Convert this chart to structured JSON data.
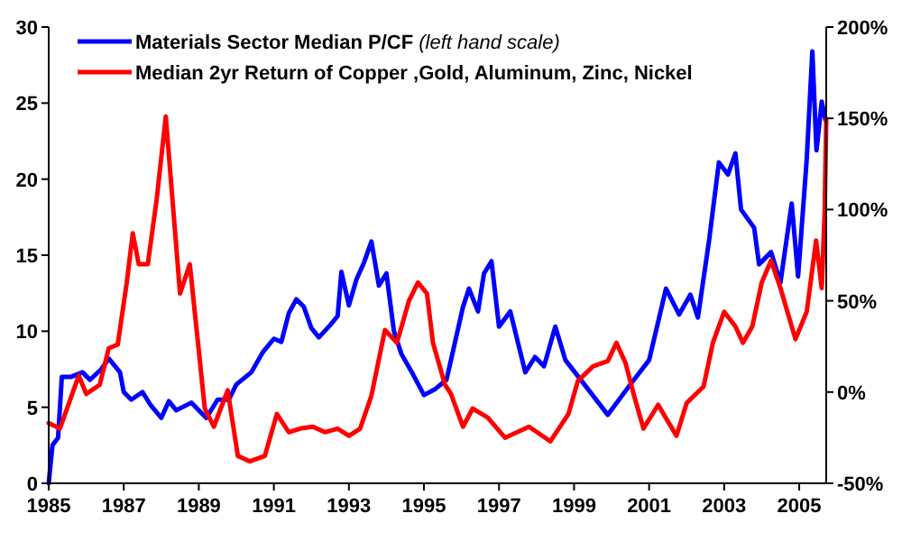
{
  "chart_data": {
    "type": "line",
    "xlim": [
      1985,
      2005.72
    ],
    "xticks": [
      1985,
      1987,
      1989,
      1991,
      1993,
      1995,
      1997,
      1999,
      2001,
      2003,
      2005
    ],
    "ylim": [
      0,
      30
    ],
    "yticks": [
      0,
      5,
      10,
      15,
      20,
      25,
      30
    ],
    "y2lim": [
      -50,
      200
    ],
    "y2ticks": [
      {
        "value": -50,
        "label": "-50%"
      },
      {
        "value": 0,
        "label": "0%"
      },
      {
        "value": 50,
        "label": "50%"
      },
      {
        "value": 100,
        "label": "100%"
      },
      {
        "value": 150,
        "label": "150%"
      },
      {
        "value": 200,
        "label": "200%"
      }
    ],
    "grid": false,
    "legend": "top left",
    "marker": "none",
    "line_style": "solid",
    "series": [
      {
        "name": "Materials Sector Median P/CF (left hand scale)",
        "color": "#0000ff",
        "x": [
          1985,
          1985.1,
          1985.25,
          1985.35,
          1985.6,
          1985.9,
          1986.1,
          1986.4,
          1986.6,
          1986.9,
          1987,
          1987.2,
          1987.5,
          1987.7,
          1988,
          1988.2,
          1988.4,
          1988.8,
          1989,
          1989.2,
          1989.5,
          1989.8,
          1990,
          1990.4,
          1990.7,
          1991,
          1991.2,
          1991.4,
          1991.6,
          1991.8,
          1992,
          1992.2,
          1992.5,
          1992.7,
          1992.8,
          1993,
          1993.2,
          1993.4,
          1993.6,
          1993.8,
          1994,
          1994.2,
          1994.4,
          1994.7,
          1995,
          1995.3,
          1995.6,
          1995.72,
          1996.04,
          1996.2,
          1996.44,
          1996.6,
          1996.8,
          1997,
          1997.3,
          1997.7,
          1997.96,
          1998.2,
          1998.5,
          1998.77,
          1999.4,
          1999.9,
          2000.5,
          2001,
          2001.45,
          2001.8,
          2002.1,
          2002.3,
          2002.6,
          2002.86,
          2003.1,
          2003.3,
          2003.45,
          2003.8,
          2003.93,
          2004.25,
          2004.5,
          2004.8,
          2004.97,
          2005.2,
          2005.35,
          2005.46,
          2005.6,
          2005.7
        ],
        "values": [
          0,
          2.5,
          3,
          7,
          7,
          7.3,
          6.8,
          7.5,
          8.2,
          7.3,
          6,
          5.5,
          6,
          5.2,
          4.3,
          5.4,
          4.8,
          5.3,
          4.8,
          4.3,
          5.5,
          5.5,
          6.5,
          7.3,
          8.6,
          9.5,
          9.3,
          11.2,
          12.1,
          11.6,
          10.2,
          9.6,
          10.4,
          11,
          13.9,
          11.7,
          13.4,
          14.5,
          15.9,
          13,
          13.8,
          10,
          8.5,
          7.2,
          5.8,
          6.2,
          6.8,
          8.1,
          11.6,
          12.8,
          11.3,
          13.8,
          14.6,
          10.3,
          11.3,
          7.3,
          8.3,
          7.7,
          10.3,
          8.1,
          6.1,
          4.5,
          6.5,
          8.1,
          12.8,
          11.1,
          12.4,
          10.9,
          16,
          21.1,
          20.3,
          21.7,
          18,
          16.8,
          14.4,
          15.2,
          13.2,
          18.4,
          13.6,
          21.3,
          28.4,
          21.9,
          25.1,
          23.9
        ]
      },
      {
        "name": "Median 2yr Return of Copper ,Gold, Aluminum, Zinc, Nickel",
        "color": "#ff0000",
        "axis": "y2",
        "x": [
          1985,
          1985.3,
          1985.8,
          1986,
          1986.36,
          1986.6,
          1986.84,
          1987.08,
          1987.24,
          1987.4,
          1987.64,
          1987.88,
          1988.12,
          1988.28,
          1988.5,
          1988.76,
          1989.16,
          1989.4,
          1989.77,
          1990.04,
          1990.36,
          1990.76,
          1991.08,
          1991.4,
          1991.7,
          1992.04,
          1992.36,
          1992.7,
          1993,
          1993.3,
          1993.6,
          1993.96,
          1994.28,
          1994.6,
          1994.84,
          1995.08,
          1995.24,
          1995.56,
          1995.72,
          1996.04,
          1996.3,
          1996.7,
          1997.16,
          1997.8,
          1998.37,
          1998.85,
          1999.1,
          1999.5,
          1999.9,
          2000.13,
          2000.37,
          2000.6,
          2000.85,
          2001.24,
          2001.73,
          2002,
          2002.45,
          2002.7,
          2003,
          2003.3,
          2003.5,
          2003.75,
          2004,
          2004.25,
          2004.5,
          2004.9,
          2005.2,
          2005.45,
          2005.6,
          2005.68,
          2005.72
        ],
        "values": [
          -17,
          -20,
          9,
          -1,
          4,
          24,
          26,
          60,
          87,
          70,
          70,
          106,
          151,
          110,
          54,
          70,
          -9,
          -19,
          1,
          -35,
          -38,
          -35,
          -12,
          -22,
          -20,
          -19,
          -22,
          -20,
          -24,
          -20,
          -2,
          34,
          27,
          50,
          60,
          54,
          27,
          4,
          -1,
          -19,
          -9,
          -14,
          -25,
          -19,
          -27,
          -12,
          6,
          14,
          17,
          27,
          16,
          -2,
          -20,
          -7,
          -24,
          -6,
          3,
          27,
          44,
          36,
          27,
          36,
          60,
          72,
          57,
          29,
          44,
          83,
          57,
          100,
          149
        ]
      }
    ]
  }
}
